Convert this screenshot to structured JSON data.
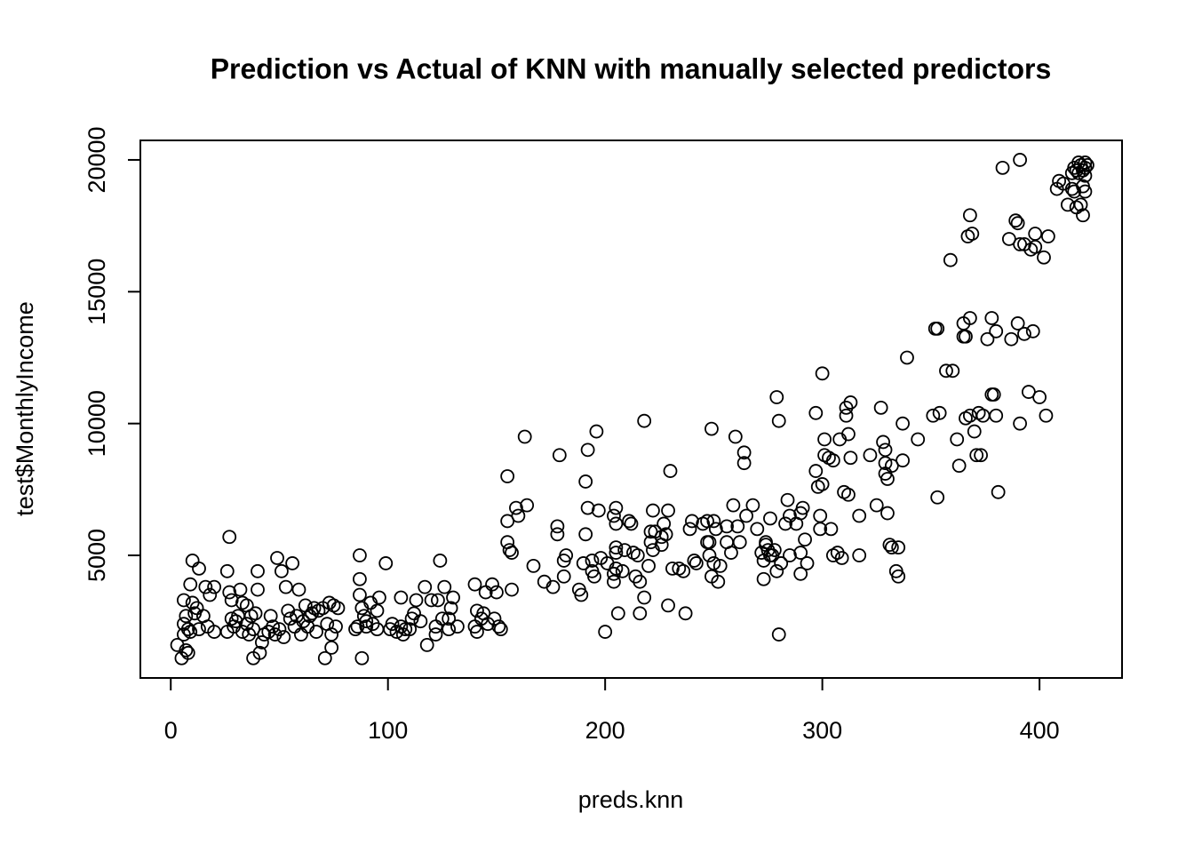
{
  "chart_data": {
    "type": "scatter",
    "title": "Prediction vs Actual of KNN with manually selected predictors",
    "x_label": "preds.knn",
    "y_label": "test$MonthlyIncome",
    "color": "#000000",
    "xlim": [
      -14,
      438
    ],
    "ylim": [
      350,
      20740
    ],
    "xticks": [
      0,
      100,
      200,
      300,
      400
    ],
    "yticks": [
      5000,
      10000,
      15000,
      20000
    ],
    "grid": false,
    "x": [
      3,
      5,
      6,
      7,
      8,
      8,
      6,
      6,
      7,
      9,
      9,
      10,
      10,
      11,
      12,
      13,
      13,
      15,
      16,
      17,
      18,
      20,
      20,
      26,
      26,
      27,
      27,
      28,
      28,
      29,
      30,
      31,
      32,
      33,
      33,
      35,
      35,
      36,
      37,
      38,
      38,
      39,
      40,
      40,
      41,
      42,
      43,
      45,
      46,
      47,
      48,
      49,
      50,
      51,
      52,
      53,
      54,
      55,
      56,
      57,
      58,
      59,
      60,
      61,
      62,
      63,
      64,
      65,
      66,
      67,
      68,
      70,
      71,
      72,
      73,
      74,
      74,
      75,
      76,
      77,
      85,
      86,
      87,
      87,
      87,
      88,
      88,
      89,
      90,
      90,
      92,
      93,
      95,
      95,
      96,
      99,
      101,
      102,
      104,
      106,
      106,
      107,
      108,
      110,
      111,
      112,
      113,
      115,
      117,
      118,
      120,
      122,
      122,
      123,
      124,
      125,
      126,
      128,
      128,
      129,
      130,
      132,
      140,
      140,
      141,
      141,
      143,
      144,
      145,
      146,
      148,
      149,
      150,
      151,
      152,
      155,
      155,
      155,
      156,
      157,
      157,
      159,
      160,
      163,
      164,
      167,
      172,
      176,
      178,
      178,
      179,
      181,
      181,
      182,
      188,
      189,
      190,
      191,
      191,
      192,
      192,
      194,
      194,
      195,
      196,
      197,
      198,
      200,
      201,
      204,
      204,
      204,
      205,
      205,
      205,
      205,
      205,
      206,
      208,
      209,
      211,
      212,
      213,
      214,
      215,
      216,
      216,
      218,
      218,
      220,
      221,
      221,
      222,
      222,
      223,
      226,
      226,
      227,
      228,
      229,
      229,
      230,
      231,
      234,
      236,
      237,
      239,
      240,
      241,
      242,
      245,
      247,
      247,
      248,
      248,
      249,
      249,
      250,
      250,
      251,
      252,
      253,
      256,
      256,
      258,
      259,
      260,
      261,
      262,
      264,
      264,
      265,
      268,
      270,
      272,
      273,
      273,
      274,
      274,
      275,
      276,
      276,
      277,
      278,
      279,
      279,
      280,
      280,
      281,
      283,
      284,
      285,
      285,
      288,
      290,
      290,
      290,
      291,
      292,
      293,
      297,
      297,
      298,
      299,
      299,
      300,
      300,
      301,
      301,
      303,
      304,
      305,
      305,
      307,
      308,
      309,
      310,
      311,
      311,
      312,
      312,
      313,
      313,
      317,
      317,
      322,
      325,
      327,
      328,
      329,
      329,
      329,
      330,
      330,
      331,
      332,
      332,
      334,
      335,
      335,
      337,
      337,
      339,
      344,
      351,
      352,
      353,
      353,
      354,
      357,
      359,
      360,
      362,
      363,
      365,
      365,
      366,
      366,
      367,
      368,
      368,
      368,
      369,
      370,
      371,
      372,
      373,
      374,
      376,
      378,
      378,
      379,
      380,
      380,
      381,
      383,
      386,
      387,
      389,
      390,
      390,
      391,
      391,
      391,
      393,
      393,
      395,
      396,
      397,
      398,
      398,
      400,
      402,
      403,
      404,
      408,
      409,
      411,
      413,
      415,
      415,
      416,
      416,
      417,
      417,
      418,
      418,
      419,
      419,
      420,
      420,
      420,
      421,
      421,
      421,
      421,
      422
    ],
    "values": [
      1600,
      1100,
      2000,
      1400,
      1300,
      2200,
      2400,
      3300,
      2700,
      2100,
      3900,
      4800,
      3200,
      2800,
      3000,
      2200,
      4500,
      2700,
      3800,
      2300,
      3500,
      2100,
      3800,
      4400,
      2100,
      5700,
      3600,
      2600,
      3300,
      2300,
      2500,
      2700,
      3700,
      2100,
      3200,
      2400,
      3100,
      2000,
      2700,
      2200,
      1100,
      2800,
      3700,
      4400,
      1300,
      1700,
      2000,
      2100,
      2700,
      2300,
      2000,
      4900,
      2200,
      4400,
      1900,
      3800,
      2900,
      2600,
      4700,
      2300,
      2700,
      3700,
      2000,
      2500,
      3100,
      2300,
      2700,
      2800,
      3000,
      2100,
      2900,
      3000,
      1100,
      2400,
      3200,
      2000,
      1500,
      3100,
      2300,
      3000,
      2200,
      2300,
      3500,
      5000,
      4100,
      3000,
      1100,
      2700,
      2500,
      2300,
      3200,
      2400,
      2900,
      2200,
      3400,
      4700,
      2200,
      2400,
      2100,
      3400,
      2300,
      2000,
      2200,
      2200,
      2600,
      2800,
      3300,
      2500,
      3800,
      1600,
      3300,
      2300,
      2000,
      3300,
      4800,
      2600,
      3800,
      2600,
      2200,
      3000,
      3400,
      2300,
      2300,
      3900,
      2900,
      2100,
      2600,
      2800,
      3600,
      2400,
      3900,
      2600,
      3600,
      2300,
      2200,
      8000,
      6300,
      5500,
      5200,
      3700,
      5100,
      6800,
      6500,
      9500,
      6900,
      4600,
      4000,
      3800,
      5800,
      6100,
      8800,
      4800,
      4200,
      5000,
      3700,
      3500,
      4700,
      5800,
      7800,
      6800,
      9000,
      4800,
      4400,
      4200,
      9700,
      6700,
      4900,
      2100,
      4700,
      4300,
      4000,
      6500,
      6800,
      6200,
      5300,
      5100,
      4500,
      2800,
      4400,
      5200,
      6300,
      6200,
      5100,
      4200,
      5000,
      4000,
      2800,
      3400,
      10100,
      4600,
      5900,
      5500,
      6700,
      5200,
      5900,
      5400,
      5700,
      6200,
      5800,
      6700,
      3100,
      8200,
      4500,
      4500,
      4400,
      2800,
      6000,
      6300,
      4800,
      4700,
      6200,
      5500,
      6300,
      5500,
      5000,
      4200,
      9800,
      4700,
      6300,
      6000,
      4000,
      4600,
      6100,
      5500,
      5100,
      6900,
      9500,
      6100,
      5500,
      8500,
      8900,
      6500,
      6900,
      6000,
      5100,
      4100,
      4800,
      5400,
      5500,
      5200,
      6400,
      5000,
      5000,
      5200,
      4400,
      11000,
      10100,
      2000,
      4700,
      6200,
      7100,
      5000,
      6500,
      6200,
      5100,
      6600,
      4300,
      6800,
      5600,
      4700,
      10400,
      8200,
      7600,
      6500,
      6000,
      11900,
      7700,
      9400,
      8800,
      8700,
      6000,
      5000,
      8600,
      5100,
      9400,
      4900,
      7400,
      10300,
      10600,
      9600,
      7300,
      10800,
      8700,
      6500,
      5000,
      8800,
      6900,
      10600,
      9300,
      9000,
      8100,
      8500,
      7900,
      6600,
      5400,
      8400,
      5300,
      4400,
      5300,
      4200,
      10000,
      8600,
      12500,
      9400,
      10300,
      13600,
      13600,
      7200,
      10400,
      12000,
      16200,
      12000,
      9400,
      8400,
      13300,
      13800,
      10200,
      13300,
      17100,
      10300,
      17900,
      14000,
      17200,
      9700,
      8800,
      10400,
      8800,
      10300,
      13200,
      14000,
      11100,
      11100,
      10300,
      13500,
      7400,
      19700,
      17000,
      13200,
      17700,
      17600,
      13800,
      20000,
      16800,
      10000,
      13400,
      16800,
      11200,
      16600,
      13500,
      16700,
      17200,
      11000,
      16300,
      10300,
      17100,
      18900,
      19200,
      19100,
      18300,
      19500,
      18900,
      18800,
      19700,
      18200,
      19600,
      19900,
      19500,
      18300,
      19800,
      17900,
      19600,
      19000,
      19700,
      18800,
      19400,
      19900,
      19800
    ]
  }
}
